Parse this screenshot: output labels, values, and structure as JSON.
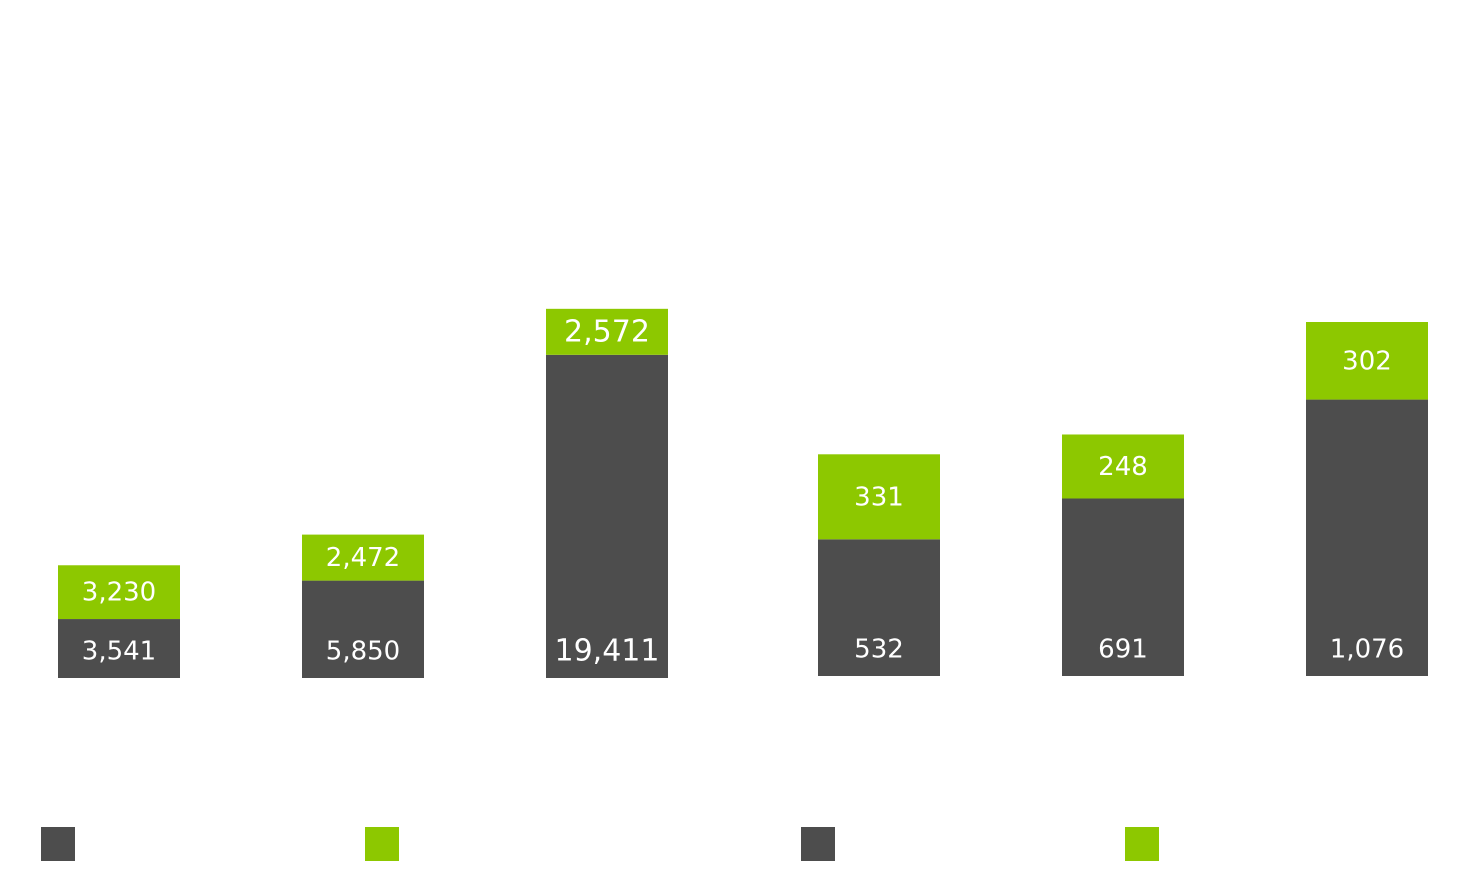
{
  "colors": {
    "dark": "#4D4D4D",
    "green": "#8DC800"
  },
  "chart_data": [
    {
      "type": "bar",
      "stacked": true,
      "categories": [
        "",
        "",
        ""
      ],
      "series": [
        {
          "color": "#4D4D4D",
          "values": [
            3541,
            5850,
            19411
          ]
        },
        {
          "color": "#8DC800",
          "values": [
            3230,
            2472,
            2572
          ]
        }
      ],
      "data_labels": [
        [
          "3,541",
          "5,850",
          "19,411"
        ],
        [
          "3,230",
          "2,472",
          "2,572"
        ]
      ],
      "grid": false
    },
    {
      "type": "bar",
      "stacked": true,
      "categories": [
        "",
        "",
        ""
      ],
      "series": [
        {
          "color": "#4D4D4D",
          "values": [
            532,
            691,
            1076
          ]
        },
        {
          "color": "#8DC800",
          "values": [
            331,
            248,
            302
          ]
        }
      ],
      "data_labels": [
        [
          "532",
          "691",
          "1,076"
        ],
        [
          "331",
          "248",
          "302"
        ]
      ],
      "grid": false
    }
  ],
  "legend": [
    {
      "color": "#4D4D4D"
    },
    {
      "color": "#8DC800"
    },
    {
      "color": "#4D4D4D"
    },
    {
      "color": "#8DC800"
    }
  ]
}
